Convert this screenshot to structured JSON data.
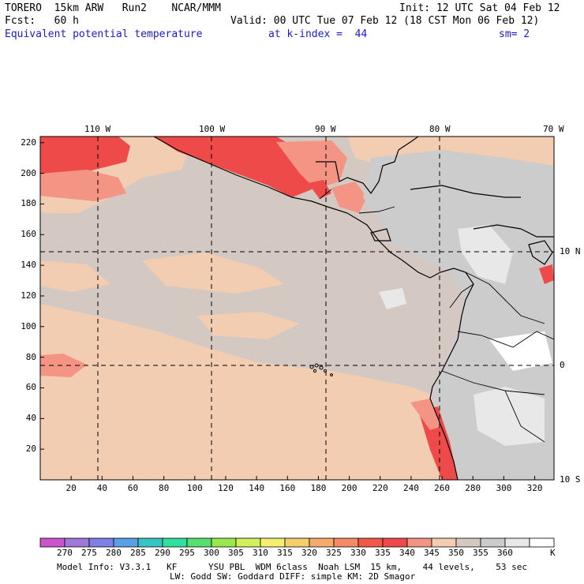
{
  "header": {
    "model": "TORERO  15km ARW   Run2    NCAR/MMM",
    "init": "Init: 12 UTC Sat 04 Feb 12",
    "fcst": "Fcst:   60 h",
    "valid": "Valid: 00 UTC Tue 07 Feb 12 (18 CST Mon 06 Feb 12)",
    "field": "Equivalent potential temperature",
    "level": "at k-index =  44",
    "smooth": "sm= 2"
  },
  "map": {
    "lon_labels": [
      "110 W",
      "100 W",
      "90 W",
      "80 W",
      "70 W"
    ],
    "lat_labels": [
      "10 N",
      "0",
      "10 S"
    ],
    "x_ticks": [
      "20",
      "40",
      "60",
      "80",
      "100",
      "120",
      "140",
      "160",
      "180",
      "200",
      "220",
      "240",
      "260",
      "280",
      "300",
      "320"
    ],
    "y_ticks": [
      "20",
      "40",
      "60",
      "80",
      "100",
      "120",
      "140",
      "160",
      "180",
      "200",
      "220"
    ]
  },
  "colorbar": {
    "labels": [
      "270",
      "275",
      "280",
      "285",
      "290",
      "295",
      "300",
      "305",
      "310",
      "315",
      "320",
      "325",
      "330",
      "335",
      "340",
      "345",
      "350",
      "355",
      "360"
    ],
    "unit": "K",
    "colors": [
      "#cc55cc",
      "#a078d8",
      "#7f7fe8",
      "#5aa0e6",
      "#37c4c4",
      "#2fe0a0",
      "#55e070",
      "#98e84e",
      "#d2f05a",
      "#f6f070",
      "#f4cf6a",
      "#f6ab6e",
      "#f48a66",
      "#f25848",
      "#ee4a4a",
      "#f49484",
      "#f2cdb2",
      "#d4c8c2",
      "#cccccc",
      "#e8e8e8",
      "#ffffff"
    ]
  },
  "footer": {
    "line1": "Model Info: V3.3.1   KF      YSU PBL  WDM 6class  Noah LSM  15 km,    44 levels,    53 sec",
    "line2": "LW: Godd SW: Goddard DIFF: simple KM: 2D Smagor"
  }
}
